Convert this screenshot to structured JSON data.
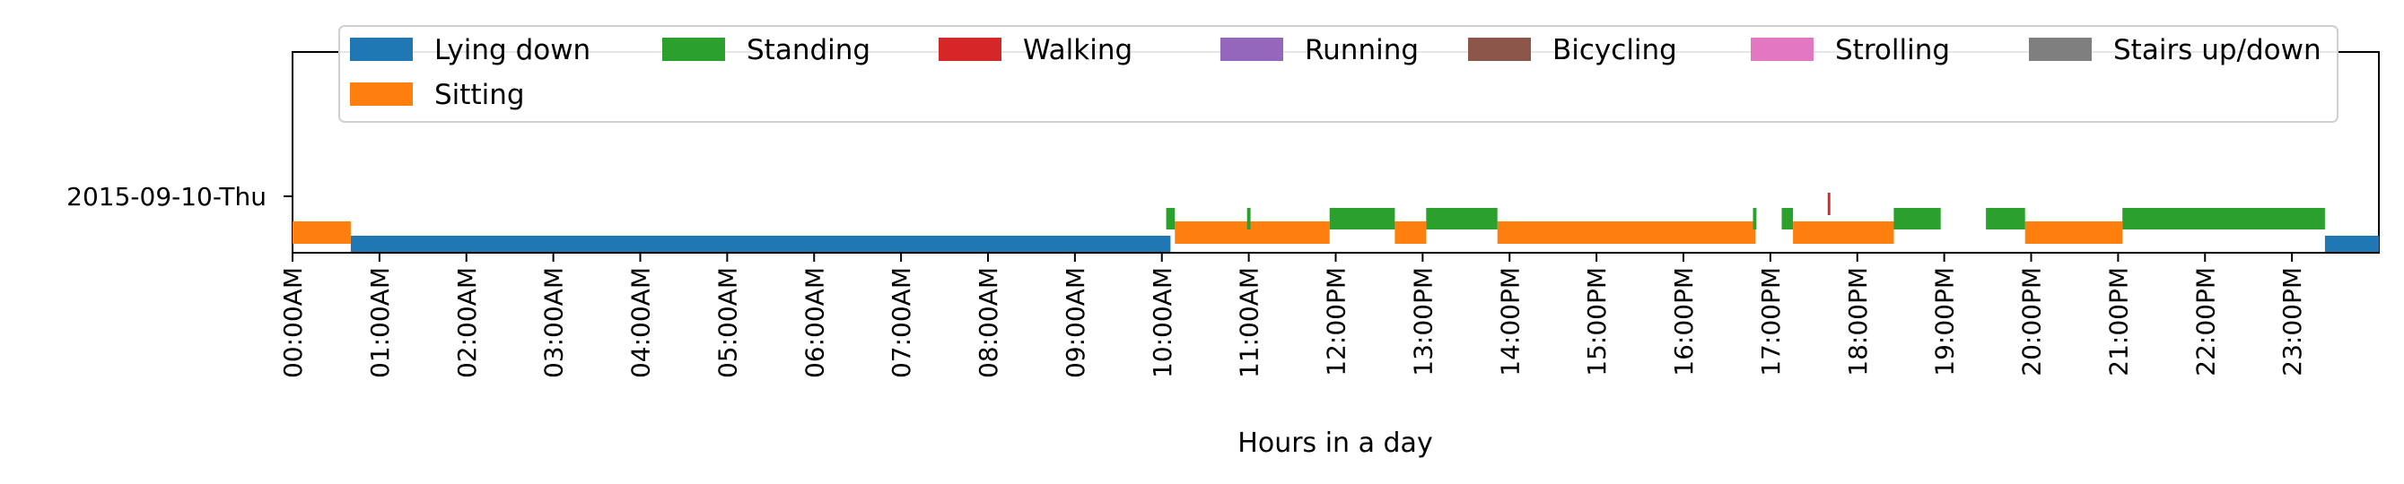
{
  "chart_data": {
    "type": "bar",
    "title": "",
    "xlabel": "Hours in a day",
    "ylabel": "",
    "xlim": [
      0,
      24
    ],
    "y_category": "2015-09-10-Thu",
    "grid": false,
    "legend_position": "top",
    "x_ticks": [
      "00:00AM",
      "01:00AM",
      "02:00AM",
      "03:00AM",
      "04:00AM",
      "05:00AM",
      "06:00AM",
      "07:00AM",
      "08:00AM",
      "09:00AM",
      "10:00AM",
      "11:00AM",
      "12:00PM",
      "13:00PM",
      "14:00PM",
      "15:00PM",
      "16:00PM",
      "17:00PM",
      "18:00PM",
      "19:00PM",
      "20:00PM",
      "21:00PM",
      "22:00PM",
      "23:00PM"
    ],
    "series": [
      {
        "name": "Lying down",
        "color": "#1f77b4",
        "level": 0,
        "intervals": [
          [
            0.67,
            10.1
          ],
          [
            23.38,
            24.0
          ]
        ]
      },
      {
        "name": "Sitting",
        "color": "#ff7f0e",
        "level": 1,
        "intervals": [
          [
            0.0,
            0.67
          ],
          [
            10.15,
            11.93
          ],
          [
            12.68,
            13.04
          ],
          [
            13.86,
            16.83
          ],
          [
            17.26,
            18.42
          ],
          [
            19.93,
            21.05
          ]
        ]
      },
      {
        "name": "Standing",
        "color": "#2ca02c",
        "level": 2,
        "intervals": [
          [
            10.05,
            10.15
          ],
          [
            10.98,
            11.02
          ],
          [
            11.93,
            12.68
          ],
          [
            13.04,
            13.86
          ],
          [
            16.8,
            16.84
          ],
          [
            17.13,
            17.26
          ],
          [
            18.42,
            18.96
          ],
          [
            19.48,
            19.93
          ],
          [
            21.05,
            23.38
          ]
        ]
      },
      {
        "name": "Walking",
        "color": "#d62728",
        "level": 3,
        "intervals": [
          [
            17.66,
            17.69
          ]
        ]
      },
      {
        "name": "Running",
        "color": "#9467bd",
        "level": 4,
        "intervals": []
      },
      {
        "name": "Bicycling",
        "color": "#8c564b",
        "level": 5,
        "intervals": []
      },
      {
        "name": "Strolling",
        "color": "#e377c2",
        "level": 6,
        "intervals": []
      },
      {
        "name": "Stairs up/down",
        "color": "#7f7f7f",
        "level": 7,
        "intervals": []
      }
    ]
  }
}
